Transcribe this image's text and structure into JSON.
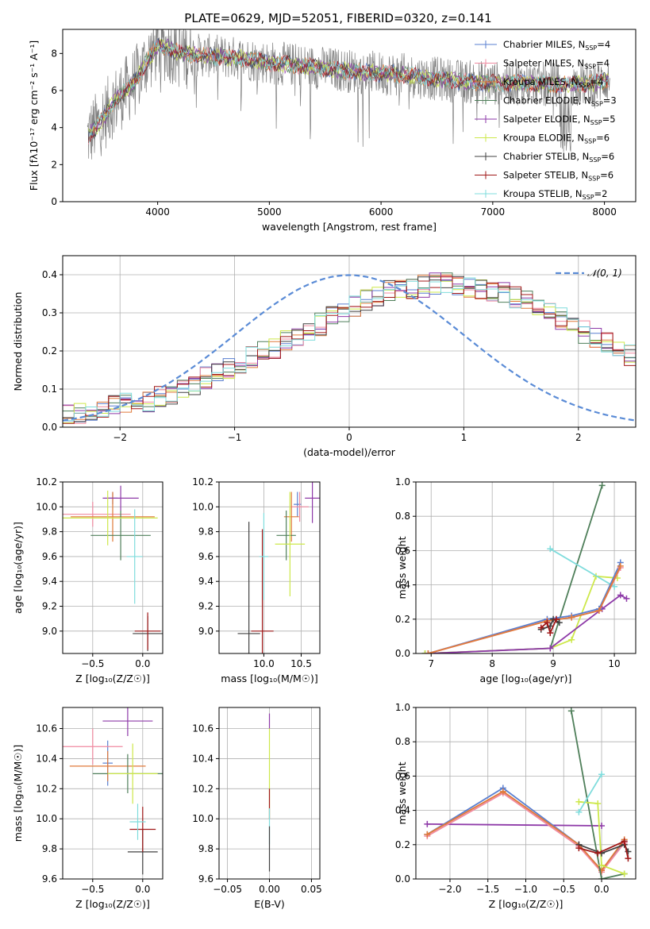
{
  "figure": {
    "title": "PLATE=0629, MJD=52051, FIBERID=0320, z=0.141"
  },
  "chart_data": [
    {
      "id": "spectrum",
      "type": "line",
      "xlabel": "wavelength [Angstrom, rest frame]",
      "ylabel": "Flux [fλ10⁻¹⁷ erg cm⁻² s⁻¹ A⁻¹]",
      "xlim": [
        3150,
        8280
      ],
      "ylim": [
        0,
        9.3
      ],
      "xticks": [
        4000,
        5000,
        6000,
        7000,
        8000
      ],
      "yticks": [
        0,
        2,
        4,
        6,
        8
      ],
      "legend_position": "right",
      "grid": false,
      "data_series": {
        "name": "data",
        "color": "#808080",
        "x_range": [
          3370,
          8050
        ],
        "anchors_x": [
          3370,
          3500,
          3600,
          3700,
          3800,
          3900,
          4000,
          4100,
          4200,
          4400,
          4600,
          4800,
          5000,
          5200,
          5500,
          5800,
          6100,
          6400,
          6700,
          7000,
          7300,
          7600,
          7900,
          8050
        ],
        "anchors_y": [
          3.5,
          4.4,
          5.3,
          5.9,
          6.5,
          7.6,
          8.4,
          8.3,
          8.0,
          7.9,
          7.8,
          7.7,
          7.5,
          7.4,
          7.2,
          7.0,
          6.9,
          6.7,
          6.5,
          6.4,
          6.4,
          6.3,
          6.4,
          6.6
        ]
      },
      "series": [
        {
          "name": "Chabrier MILES, N_SSP=4",
          "label_main": "Chabrier MILES, N",
          "label_sub": "SSP",
          "label_end": "=4",
          "color": "#5a7fd0"
        },
        {
          "name": "Salpeter MILES, N_SSP=4",
          "label_main": "Salpeter MILES, N",
          "label_sub": "SSP",
          "label_end": "=4",
          "color": "#f08aa0"
        },
        {
          "name": "Kroupa MILES, N_SSP=4",
          "label_main": "Kroupa MILES, N",
          "label_sub": "SSP",
          "label_end": "=4",
          "color": "#e07a3a"
        },
        {
          "name": "Chabrier ELODIE, N_SSP=3",
          "label_main": "Chabrier ELODIE, N",
          "label_sub": "SSP",
          "label_end": "=3",
          "color": "#4f7f5a"
        },
        {
          "name": "Salpeter ELODIE, N_SSP=5",
          "label_main": "Salpeter ELODIE, N",
          "label_sub": "SSP",
          "label_end": "=5",
          "color": "#8e3aa8"
        },
        {
          "name": "Kroupa ELODIE, N_SSP=6",
          "label_main": "Kroupa ELODIE, N",
          "label_sub": "SSP",
          "label_end": "=6",
          "color": "#cde84a"
        },
        {
          "name": "Chabrier STELIB, N_SSP=6",
          "label_main": "Chabrier STELIB, N",
          "label_sub": "SSP",
          "label_end": "=6",
          "color": "#404040"
        },
        {
          "name": "Salpeter STELIB, N_SSP=6",
          "label_main": "Salpeter STELIB, N",
          "label_sub": "SSP",
          "label_end": "=6",
          "color": "#a01818"
        },
        {
          "name": "Kroupa STELIB, N_SSP=2",
          "label_main": "Kroupa STELIB, N",
          "label_sub": "SSP",
          "label_end": "=2",
          "color": "#7fdcdc"
        }
      ]
    },
    {
      "id": "residuals",
      "type": "histogram",
      "xlabel": "(data-model)/error",
      "ylabel": "Normed distribution",
      "xlim": [
        -2.5,
        2.5
      ],
      "ylim": [
        0,
        0.45
      ],
      "xticks": [
        -2,
        -1,
        0,
        1,
        2
      ],
      "yticks": [
        0.0,
        0.1,
        0.2,
        0.3,
        0.4
      ],
      "grid": true,
      "legend_position": "top-right",
      "legend_label": "𝒩(0, 1)",
      "gaussian": {
        "mean": 0,
        "sigma": 1,
        "color": "#5a8bd6"
      },
      "bins": {
        "start": -2.5,
        "width": 0.1
      },
      "base_values": [
        0.03,
        0.035,
        0.04,
        0.05,
        0.055,
        0.06,
        0.065,
        0.07,
        0.08,
        0.09,
        0.1,
        0.11,
        0.13,
        0.14,
        0.155,
        0.17,
        0.185,
        0.2,
        0.21,
        0.225,
        0.24,
        0.255,
        0.27,
        0.29,
        0.305,
        0.32,
        0.335,
        0.345,
        0.355,
        0.36,
        0.365,
        0.37,
        0.375,
        0.375,
        0.37,
        0.365,
        0.36,
        0.355,
        0.35,
        0.34,
        0.33,
        0.32,
        0.3,
        0.285,
        0.27,
        0.25,
        0.235,
        0.22,
        0.205,
        0.19,
        0.175,
        0.16,
        0.15,
        0.135,
        0.12,
        0.11,
        0.1,
        0.09,
        0.08,
        0.075,
        0.07,
        0.065,
        0.06,
        0.055,
        0.05,
        0.05,
        0.045,
        0.045,
        0.04,
        0.04,
        0.04,
        0.035,
        0.035,
        0.035,
        0.03,
        0.03,
        0.03,
        0.03,
        0.03,
        0.03
      ]
    },
    {
      "id": "age_vs_Z",
      "type": "errorbar",
      "xlabel": "Z [log₁₀(Z/Z☉)]",
      "ylabel": "age  [log₁₀(age/yr)]",
      "xlim": [
        -0.8,
        0.2
      ],
      "ylim": [
        8.82,
        10.2
      ],
      "xticks": [
        -0.5,
        0.0
      ],
      "xticklabels": [
        "−0.5",
        "0.0"
      ],
      "yticks": [
        9.0,
        9.2,
        9.4,
        9.6,
        9.8,
        10.0,
        10.2
      ],
      "grid": true,
      "points": [
        {
          "series": 0,
          "x": -0.3,
          "xerr": 0.05,
          "y": 10.07,
          "yerr": 0.05
        },
        {
          "series": 1,
          "x": -0.5,
          "xerr": 0.38,
          "y": 9.94,
          "yerr": 0.1
        },
        {
          "series": 2,
          "x": -0.3,
          "xerr": 0.42,
          "y": 9.92,
          "yerr": 0.2
        },
        {
          "series": 3,
          "x": -0.22,
          "xerr": 0.3,
          "y": 9.77,
          "yerr": 0.2
        },
        {
          "series": 4,
          "x": -0.22,
          "xerr": 0.18,
          "y": 10.07,
          "yerr": 0.1
        },
        {
          "series": 5,
          "x": -0.35,
          "xerr": 0.5,
          "y": 9.91,
          "yerr": 0.22
        },
        {
          "series": 6,
          "x": 0.05,
          "xerr": 0.15,
          "y": 8.98,
          "yerr": 0.14
        },
        {
          "series": 7,
          "x": 0.05,
          "xerr": 0.13,
          "y": 9.0,
          "yerr": 0.15
        },
        {
          "series": 8,
          "x": -0.08,
          "xerr": 0.08,
          "y": 9.6,
          "yerr": 0.38
        }
      ]
    },
    {
      "id": "age_vs_mass",
      "type": "errorbar",
      "xlabel": "mass [log₁₀(M/M☉)]",
      "ylabel": "",
      "xlim": [
        9.4,
        10.75
      ],
      "ylim": [
        8.82,
        10.2
      ],
      "xticks": [
        10.0,
        10.5
      ],
      "xticklabels": [
        "10.0",
        "10.5"
      ],
      "yticks": [
        9.0,
        9.2,
        9.4,
        9.6,
        9.8,
        10.0,
        10.2
      ],
      "grid": true,
      "points": [
        {
          "series": 0,
          "x": 10.45,
          "xerr": 0.05,
          "y": 10.02,
          "yerr": 0.1
        },
        {
          "series": 1,
          "x": 10.48,
          "xerr": 0.12,
          "y": 10.0,
          "yerr": 0.12
        },
        {
          "series": 2,
          "x": 10.37,
          "xerr": 0.1,
          "y": 9.92,
          "yerr": 0.2
        },
        {
          "series": 3,
          "x": 10.3,
          "xerr": 0.13,
          "y": 9.77,
          "yerr": 0.2
        },
        {
          "series": 4,
          "x": 10.65,
          "xerr": 0.1,
          "y": 10.07,
          "yerr": 0.2
        },
        {
          "series": 5,
          "x": 10.35,
          "xerr": 0.2,
          "y": 9.7,
          "yerr": 0.42
        },
        {
          "series": 6,
          "x": 9.8,
          "xerr": 0.15,
          "y": 8.98,
          "yerr": 0.9
        },
        {
          "series": 7,
          "x": 9.98,
          "xerr": 0.15,
          "y": 9.0,
          "yerr": 0.82
        },
        {
          "series": 8,
          "x": 10.0,
          "xerr": 0.06,
          "y": 9.6,
          "yerr": 0.35
        }
      ]
    },
    {
      "id": "weight_vs_age",
      "type": "line",
      "xlabel": "age  [log₁₀(age/yr)]",
      "ylabel": "mass weight",
      "xlim": [
        6.75,
        10.35
      ],
      "ylim": [
        0,
        1.0
      ],
      "xticks": [
        7,
        8,
        9,
        10
      ],
      "yticks": [
        0.0,
        0.2,
        0.4,
        0.6,
        0.8,
        1.0
      ],
      "grid": true,
      "lines": [
        {
          "series": 3,
          "x": [
            6.9,
            8.95,
            9.8
          ],
          "y": [
            0.0,
            0.03,
            0.98
          ]
        },
        {
          "series": 5,
          "x": [
            6.9,
            8.95,
            9.3,
            9.7,
            10.05
          ],
          "y": [
            0.0,
            0.03,
            0.08,
            0.45,
            0.44
          ]
        },
        {
          "series": 8,
          "x": [
            8.95,
            10.0
          ],
          "y": [
            0.61,
            0.39
          ]
        },
        {
          "series": 4,
          "x": [
            6.95,
            8.95,
            9.8,
            10.1,
            10.2
          ],
          "y": [
            0.0,
            0.03,
            0.26,
            0.34,
            0.32
          ]
        },
        {
          "series": 0,
          "x": [
            6.95,
            8.9,
            9.3,
            9.75,
            10.1
          ],
          "y": [
            0.0,
            0.2,
            0.22,
            0.26,
            0.53
          ]
        },
        {
          "series": 1,
          "x": [
            6.95,
            8.9,
            9.3,
            9.75,
            10.1
          ],
          "y": [
            0.0,
            0.19,
            0.21,
            0.25,
            0.5
          ]
        },
        {
          "series": 2,
          "x": [
            6.95,
            8.9,
            9.3,
            9.75,
            10.1
          ],
          "y": [
            0.0,
            0.19,
            0.21,
            0.25,
            0.51
          ]
        },
        {
          "series": 6,
          "x": [
            8.8,
            8.95,
            9.0,
            9.1
          ],
          "y": [
            0.14,
            0.16,
            0.2,
            0.18
          ]
        },
        {
          "series": 7,
          "x": [
            8.8,
            8.9,
            8.95,
            9.05
          ],
          "y": [
            0.15,
            0.18,
            0.12,
            0.2
          ]
        }
      ]
    },
    {
      "id": "mass_vs_Z",
      "type": "errorbar",
      "xlabel": "Z [log₁₀(Z/Z☉)]",
      "ylabel": "mass [log₁₀(M/M☉)]",
      "xlim": [
        -0.8,
        0.2
      ],
      "ylim": [
        9.6,
        10.74
      ],
      "xticks": [
        -0.5,
        0.0
      ],
      "xticklabels": [
        "−0.5",
        "0.0"
      ],
      "yticks": [
        9.6,
        9.8,
        10.0,
        10.2,
        10.4,
        10.6
      ],
      "grid": true,
      "points": [
        {
          "series": 0,
          "x": -0.35,
          "xerr": 0.05,
          "y": 10.37,
          "yerr": 0.15
        },
        {
          "series": 1,
          "x": -0.5,
          "xerr": 0.3,
          "y": 10.48,
          "yerr": 0.12
        },
        {
          "series": 2,
          "x": -0.35,
          "xerr": 0.38,
          "y": 10.35,
          "yerr": 0.1
        },
        {
          "series": 3,
          "x": -0.15,
          "xerr": 0.35,
          "y": 10.3,
          "yerr": 0.13
        },
        {
          "series": 4,
          "x": -0.15,
          "xerr": 0.25,
          "y": 10.65,
          "yerr": 0.1
        },
        {
          "series": 5,
          "x": -0.1,
          "xerr": 0.25,
          "y": 10.3,
          "yerr": 0.2
        },
        {
          "series": 6,
          "x": 0.0,
          "xerr": 0.15,
          "y": 9.78,
          "yerr": 0.15
        },
        {
          "series": 7,
          "x": 0.0,
          "xerr": 0.13,
          "y": 9.93,
          "yerr": 0.15
        },
        {
          "series": 8,
          "x": -0.05,
          "xerr": 0.08,
          "y": 9.98,
          "yerr": 0.12
        }
      ]
    },
    {
      "id": "mass_vs_ebv",
      "type": "errorbar",
      "xlabel": "E(B-V)",
      "ylabel": "",
      "xlim": [
        -0.06,
        0.06
      ],
      "ylim": [
        9.6,
        10.74
      ],
      "xticks": [
        -0.05,
        0.0,
        0.05
      ],
      "xticklabels": [
        "−0.05",
        "0.00",
        "0.05"
      ],
      "yticks": [
        9.6,
        9.8,
        10.0,
        10.2,
        10.4,
        10.6
      ],
      "grid": true,
      "points": [
        {
          "series": 4,
          "x": 0.0,
          "xerr": 0.0,
          "y": 10.65,
          "yerr": 0.05
        },
        {
          "series": 5,
          "x": 0.0,
          "xerr": 0.0,
          "y": 10.3,
          "yerr": 0.3
        },
        {
          "series": 7,
          "x": 0.0,
          "xerr": 0.0,
          "y": 10.1,
          "yerr": 0.1
        },
        {
          "series": 8,
          "x": 0.0,
          "xerr": 0.0,
          "y": 9.95,
          "yerr": 0.12
        },
        {
          "series": 6,
          "x": 0.0,
          "xerr": 0.0,
          "y": 9.8,
          "yerr": 0.15
        }
      ]
    },
    {
      "id": "weight_vs_Z",
      "type": "line",
      "xlabel": "Z [log₁₀(Z/Z☉)]",
      "ylabel": "mass weight",
      "xlim": [
        -2.45,
        0.45
      ],
      "ylim": [
        0,
        1.0
      ],
      "xticks": [
        -2.0,
        -1.5,
        -1.0,
        -0.5,
        0.0
      ],
      "xticklabels": [
        "−2.0",
        "−1.5",
        "−1.0",
        "−0.5",
        "0.0"
      ],
      "yticks": [
        0.0,
        0.2,
        0.4,
        0.6,
        0.8,
        1.0
      ],
      "grid": true,
      "lines": [
        {
          "series": 4,
          "x": [
            -2.3,
            0.0
          ],
          "y": [
            0.32,
            0.31
          ]
        },
        {
          "series": 0,
          "x": [
            -2.3,
            -1.3,
            -0.3,
            0.0,
            0.3
          ],
          "y": [
            0.26,
            0.53,
            0.2,
            0.05,
            0.22
          ]
        },
        {
          "series": 1,
          "x": [
            -2.3,
            -1.3,
            -0.3,
            0.0,
            0.3
          ],
          "y": [
            0.25,
            0.5,
            0.19,
            0.04,
            0.21
          ]
        },
        {
          "series": 2,
          "x": [
            -2.3,
            -1.3,
            -0.3,
            0.0,
            0.3
          ],
          "y": [
            0.26,
            0.51,
            0.2,
            0.05,
            0.23
          ]
        },
        {
          "series": 3,
          "x": [
            -0.4,
            0.0,
            0.3
          ],
          "y": [
            0.98,
            0.0,
            0.03
          ]
        },
        {
          "series": 5,
          "x": [
            -0.3,
            -0.05,
            0.0,
            0.3
          ],
          "y": [
            0.45,
            0.44,
            0.08,
            0.03
          ]
        },
        {
          "series": 8,
          "x": [
            -0.3,
            0.0
          ],
          "y": [
            0.39,
            0.61
          ]
        },
        {
          "series": 6,
          "x": [
            -0.3,
            0.0,
            0.3,
            0.35
          ],
          "y": [
            0.2,
            0.15,
            0.2,
            0.16
          ]
        },
        {
          "series": 7,
          "x": [
            -0.3,
            -0.05,
            0.3,
            0.35
          ],
          "y": [
            0.18,
            0.15,
            0.22,
            0.12
          ]
        }
      ]
    }
  ]
}
